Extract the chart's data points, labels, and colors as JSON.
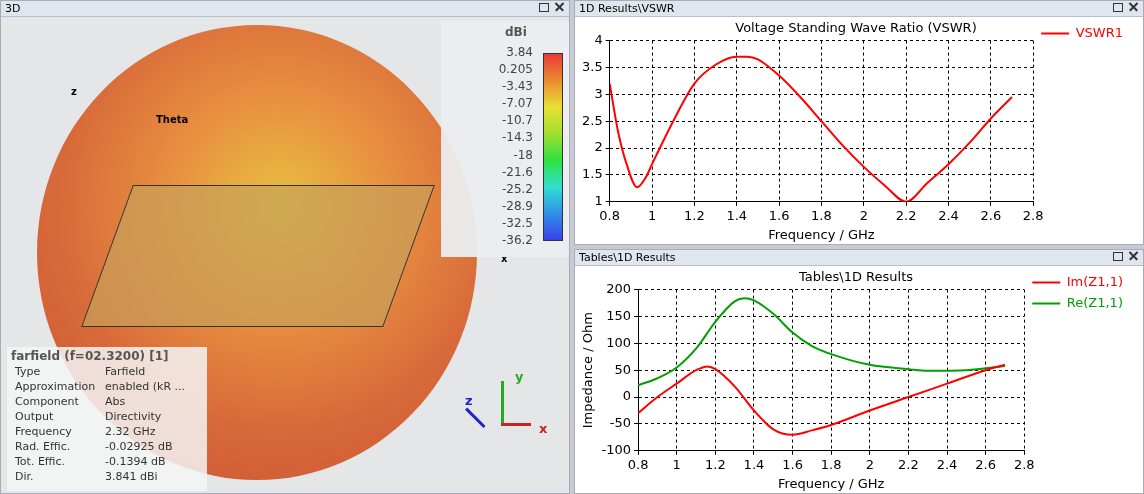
{
  "chart_data": [
    {
      "type": "other",
      "title": "farfield (f=02.3200) [1]",
      "clabel": "dBi",
      "annotations": [
        "3D",
        "Type",
        "Farfield",
        "Approximation",
        "enabled (kR ...",
        "Component",
        "Abs",
        "Output",
        "Directivity",
        "Frequency",
        "2.32 GHz",
        "Rad. Effic.",
        "-0.02925 dB",
        "Tot. Effic.",
        "-0.1394 dB",
        "Dir.",
        "3.841 dBi",
        "z",
        "Theta",
        "x",
        "y",
        "z",
        "x",
        "3.84",
        "0.205",
        "-3.43",
        "-7.07",
        "-10.7",
        "-14.3",
        "-18",
        "-21.6",
        "-25.2",
        "-28.9",
        "-32.5",
        "-36.2"
      ]
    },
    {
      "type": "line",
      "title": "Voltage Standing Wave Ratio (VSWR)",
      "xlabel": "Frequency / GHz",
      "annotations": [
        "1D Results\\VSWR"
      ],
      "xlim": [
        0.8,
        2.8
      ],
      "xticks": [
        0.8,
        1,
        1.2,
        1.4,
        1.6,
        1.8,
        2,
        2.2,
        2.4,
        2.6,
        2.8
      ],
      "ylim": [
        1,
        4
      ],
      "yticks": [
        1,
        1.5,
        2,
        2.5,
        3,
        3.5,
        4
      ],
      "grid": true,
      "legend": "right",
      "marker": "none",
      "series": [
        {
          "name": "VSWR1",
          "color": "#ff0000",
          "x": [
            0.8,
            0.84,
            0.88,
            0.93,
            0.97,
            1.0,
            1.1,
            1.2,
            1.3,
            1.4,
            1.45,
            1.5,
            1.6,
            1.7,
            1.8,
            1.9,
            2.0,
            2.1,
            2.2,
            2.3,
            2.4,
            2.5,
            2.6,
            2.7
          ],
          "values": [
            3.2,
            2.3,
            1.7,
            1.27,
            1.45,
            1.7,
            2.5,
            3.2,
            3.55,
            3.7,
            3.7,
            3.65,
            3.35,
            2.95,
            2.5,
            2.05,
            1.65,
            1.3,
            1.0,
            1.35,
            1.7,
            2.1,
            2.55,
            2.95
          ]
        }
      ]
    },
    {
      "type": "line",
      "title": "Tables\\1D Results",
      "xlabel": "Frequency / GHz",
      "ylabel": "Impedance / Ohm",
      "annotations": [
        "Tables\\1D Results"
      ],
      "xlim": [
        0.8,
        2.8
      ],
      "xticks": [
        0.8,
        1,
        1.2,
        1.4,
        1.6,
        1.8,
        2,
        2.2,
        2.4,
        2.6,
        2.8
      ],
      "ylim": [
        -100,
        200
      ],
      "yticks": [
        -100,
        -50,
        0,
        50,
        100,
        150,
        200
      ],
      "grid": true,
      "legend": "right",
      "marker": "none",
      "series": [
        {
          "name": "Im(Z1,1)",
          "color": "#ff0000",
          "x": [
            0.8,
            0.9,
            1.0,
            1.1,
            1.16,
            1.2,
            1.3,
            1.4,
            1.5,
            1.6,
            1.7,
            1.8,
            2.0,
            2.2,
            2.4,
            2.6,
            2.7
          ],
          "values": [
            -30,
            0,
            25,
            50,
            57,
            52,
            20,
            -25,
            -60,
            -70,
            -62,
            -52,
            -25,
            0,
            25,
            50,
            60
          ]
        },
        {
          "name": "Re(Z1,1)",
          "color": "#00a000",
          "x": [
            0.8,
            0.9,
            1.0,
            1.1,
            1.2,
            1.3,
            1.35,
            1.4,
            1.5,
            1.6,
            1.7,
            1.8,
            2.0,
            2.2,
            2.3,
            2.5,
            2.7
          ],
          "values": [
            22,
            35,
            55,
            90,
            140,
            178,
            184,
            180,
            155,
            120,
            95,
            80,
            60,
            52,
            49,
            50,
            58
          ]
        }
      ]
    }
  ]
}
